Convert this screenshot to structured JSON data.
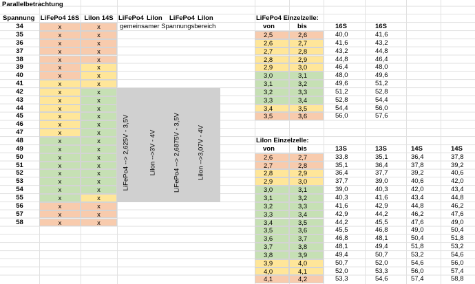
{
  "title": "Parallelbetrachtung",
  "left_table": {
    "headers": [
      "Spannung",
      "LiFePo4 16S",
      "LiIon 14S",
      "LiFePo4",
      "LiIon",
      "LiFePo4",
      "LiIon"
    ],
    "note": "gemeinsamer Spannungsbereich",
    "rows": [
      [
        "34",
        "x",
        "x"
      ],
      [
        "35",
        "x",
        "x"
      ],
      [
        "36",
        "x",
        "x"
      ],
      [
        "37",
        "x",
        "x"
      ],
      [
        "38",
        "x",
        "x"
      ],
      [
        "39",
        "x",
        "x"
      ],
      [
        "40",
        "x",
        "x"
      ],
      [
        "41",
        "x",
        "x"
      ],
      [
        "42",
        "x",
        "x"
      ],
      [
        "43",
        "x",
        "x"
      ],
      [
        "44",
        "x",
        "x"
      ],
      [
        "45",
        "x",
        "x"
      ],
      [
        "46",
        "x",
        "x"
      ],
      [
        "47",
        "x",
        "x"
      ],
      [
        "48",
        "x",
        "x"
      ],
      [
        "49",
        "x",
        "x"
      ],
      [
        "50",
        "x",
        "x"
      ],
      [
        "51",
        "x",
        "x"
      ],
      [
        "52",
        "x",
        "x"
      ],
      [
        "53",
        "x",
        "x"
      ],
      [
        "54",
        "x",
        "x"
      ],
      [
        "55",
        "x",
        "x"
      ],
      [
        "56",
        "x",
        "x"
      ],
      [
        "57",
        "x",
        "x"
      ],
      [
        "58",
        "x",
        "x"
      ]
    ],
    "colors": [
      [
        "#f8cbad",
        "#f8cbad"
      ],
      [
        "#f8cbad",
        "#f8cbad"
      ],
      [
        "#f8cbad",
        "#f8cbad"
      ],
      [
        "#f8cbad",
        "#f8cbad"
      ],
      [
        "#f8cbad",
        "#f8cbad"
      ],
      [
        "#f8cbad",
        "#ffe699"
      ],
      [
        "#f8cbad",
        "#ffe699"
      ],
      [
        "#ffe699",
        "#ffe699"
      ],
      [
        "#ffe699",
        "#c6e0b4"
      ],
      [
        "#ffe699",
        "#c6e0b4"
      ],
      [
        "#ffe699",
        "#c6e0b4"
      ],
      [
        "#ffe699",
        "#c6e0b4"
      ],
      [
        "#ffe699",
        "#c6e0b4"
      ],
      [
        "#ffe699",
        "#c6e0b4"
      ],
      [
        "#c6e0b4",
        "#c6e0b4"
      ],
      [
        "#c6e0b4",
        "#c6e0b4"
      ],
      [
        "#c6e0b4",
        "#c6e0b4"
      ],
      [
        "#c6e0b4",
        "#c6e0b4"
      ],
      [
        "#c6e0b4",
        "#c6e0b4"
      ],
      [
        "#c6e0b4",
        "#c6e0b4"
      ],
      [
        "#c6e0b4",
        "#c6e0b4"
      ],
      [
        "#c6e0b4",
        "#ffe699"
      ],
      [
        "#f8cbad",
        "#f8cbad"
      ],
      [
        "#f8cbad",
        "#f8cbad"
      ],
      [
        "#f8cbad",
        "#f8cbad"
      ]
    ]
  },
  "range_notes": [
    "LiFePo4 --> 2,625V - 3,5V",
    "LiIon -->3V - 4V",
    "LiFePo4 --> 2,6875V - 3,5V",
    "LiIon -->3,07V - 4V"
  ],
  "lifepo4_cell_table": {
    "title": "LiFePo4 Einzelzelle:",
    "headers": [
      "von",
      "bis",
      "16S",
      "16S"
    ],
    "rows": [
      [
        "2,5",
        "2,6",
        "40,0",
        "41,6"
      ],
      [
        "2,6",
        "2,7",
        "41,6",
        "43,2"
      ],
      [
        "2,7",
        "2,8",
        "43,2",
        "44,8"
      ],
      [
        "2,8",
        "2,9",
        "44,8",
        "46,4"
      ],
      [
        "2,9",
        "3,0",
        "46,4",
        "48,0"
      ],
      [
        "3,0",
        "3,1",
        "48,0",
        "49,6"
      ],
      [
        "3,1",
        "3,2",
        "49,6",
        "51,2"
      ],
      [
        "3,2",
        "3,3",
        "51,2",
        "52,8"
      ],
      [
        "3,3",
        "3,4",
        "52,8",
        "54,4"
      ],
      [
        "3,4",
        "3,5",
        "54,4",
        "56,0"
      ],
      [
        "3,5",
        "3,6",
        "56,0",
        "57,6"
      ]
    ],
    "colors": [
      "#f8cbad",
      "#ffe699",
      "#ffe699",
      "#ffe699",
      "#ffe699",
      "#c6e0b4",
      "#c6e0b4",
      "#c6e0b4",
      "#c6e0b4",
      "#ffe699",
      "#f8cbad"
    ]
  },
  "liion_cell_table": {
    "title": "LiIon Einzelzelle:",
    "headers": [
      "von",
      "bis",
      "13S",
      "13S",
      "14S",
      "14S"
    ],
    "rows": [
      [
        "2,6",
        "2,7",
        "33,8",
        "35,1",
        "36,4",
        "37,8"
      ],
      [
        "2,7",
        "2,8",
        "35,1",
        "36,4",
        "37,8",
        "39,2"
      ],
      [
        "2,8",
        "2,9",
        "36,4",
        "37,7",
        "39,2",
        "40,6"
      ],
      [
        "2,9",
        "3,0",
        "37,7",
        "39,0",
        "40,6",
        "42,0"
      ],
      [
        "3,0",
        "3,1",
        "39,0",
        "40,3",
        "42,0",
        "43,4"
      ],
      [
        "3,1",
        "3,2",
        "40,3",
        "41,6",
        "43,4",
        "44,8"
      ],
      [
        "3,2",
        "3,3",
        "41,6",
        "42,9",
        "44,8",
        "46,2"
      ],
      [
        "3,3",
        "3,4",
        "42,9",
        "44,2",
        "46,2",
        "47,6"
      ],
      [
        "3,4",
        "3,5",
        "44,2",
        "45,5",
        "47,6",
        "49,0"
      ],
      [
        "3,5",
        "3,6",
        "45,5",
        "46,8",
        "49,0",
        "50,4"
      ],
      [
        "3,6",
        "3,7",
        "46,8",
        "48,1",
        "50,4",
        "51,8"
      ],
      [
        "3,7",
        "3,8",
        "48,1",
        "49,4",
        "51,8",
        "53,2"
      ],
      [
        "3,8",
        "3,9",
        "49,4",
        "50,7",
        "53,2",
        "54,6"
      ],
      [
        "3,9",
        "4,0",
        "50,7",
        "52,0",
        "54,6",
        "56,0"
      ],
      [
        "4,0",
        "4,1",
        "52,0",
        "53,3",
        "56,0",
        "57,4"
      ],
      [
        "4,1",
        "4,2",
        "53,3",
        "54,6",
        "57,4",
        "58,8"
      ]
    ],
    "colors": [
      "#f8cbad",
      "#f8cbad",
      "#ffe699",
      "#ffe699",
      "#c6e0b4",
      "#c6e0b4",
      "#c6e0b4",
      "#c6e0b4",
      "#c6e0b4",
      "#c6e0b4",
      "#c6e0b4",
      "#c6e0b4",
      "#c6e0b4",
      "#ffe699",
      "#ffe699",
      "#f8cbad"
    ]
  }
}
